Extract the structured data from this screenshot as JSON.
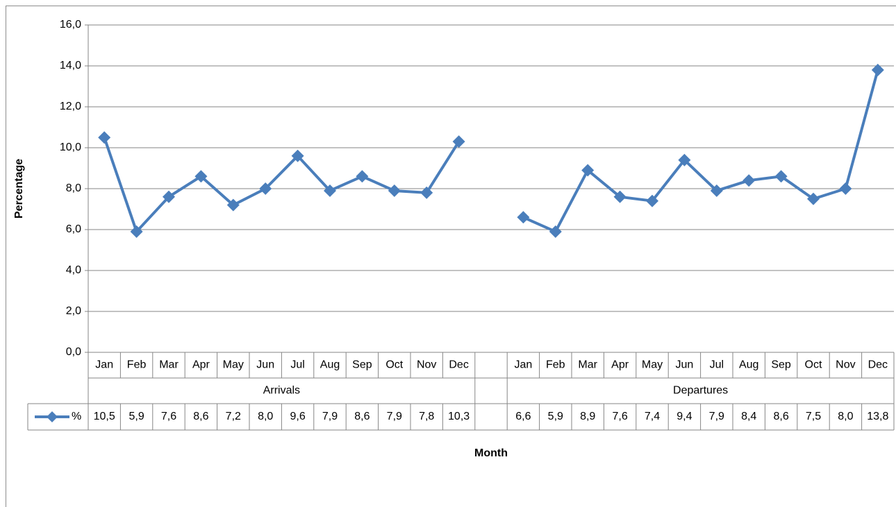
{
  "chart_data": {
    "type": "line",
    "x_label": "Month",
    "y_label": "Percentage",
    "categories": [
      "Jan",
      "Feb",
      "Mar",
      "Apr",
      "May",
      "Jun",
      "Jul",
      "Aug",
      "Sep",
      "Oct",
      "Nov",
      "Dec",
      null,
      "Jan",
      "Feb",
      "Mar",
      "Apr",
      "May",
      "Jun",
      "Jul",
      "Aug",
      "Sep",
      "Oct",
      "Nov",
      "Dec"
    ],
    "groups": [
      "Arrivals",
      "Departures"
    ],
    "series": [
      {
        "name": "%",
        "color": "#4a7ebb",
        "values": [
          10.5,
          5.9,
          7.6,
          8.6,
          7.2,
          8.0,
          9.6,
          7.9,
          8.6,
          7.9,
          7.8,
          10.3,
          null,
          6.6,
          5.9,
          8.9,
          7.6,
          7.4,
          9.4,
          7.9,
          8.4,
          8.6,
          7.5,
          8.0,
          13.8
        ],
        "value_labels": [
          "10,5",
          "5,9",
          "7,6",
          "8,6",
          "7,2",
          "8,0",
          "9,6",
          "7,9",
          "8,6",
          "7,9",
          "7,8",
          "10,3",
          null,
          "6,6",
          "5,9",
          "8,9",
          "7,6",
          "7,4",
          "9,4",
          "7,9",
          "8,4",
          "8,6",
          "7,5",
          "8,0",
          "13,8"
        ]
      }
    ],
    "ylim": [
      0,
      16
    ],
    "yticks": [
      {
        "value": 0,
        "label": "0,0"
      },
      {
        "value": 2,
        "label": "2,0"
      },
      {
        "value": 4,
        "label": "4,0"
      },
      {
        "value": 6,
        "label": "6,0"
      },
      {
        "value": 8,
        "label": "8,0"
      },
      {
        "value": 10,
        "label": "10,0"
      },
      {
        "value": 12,
        "label": "12,0"
      },
      {
        "value": 14,
        "label": "14,0"
      },
      {
        "value": 16,
        "label": "16,0"
      }
    ],
    "grid": true,
    "data_table": true
  }
}
